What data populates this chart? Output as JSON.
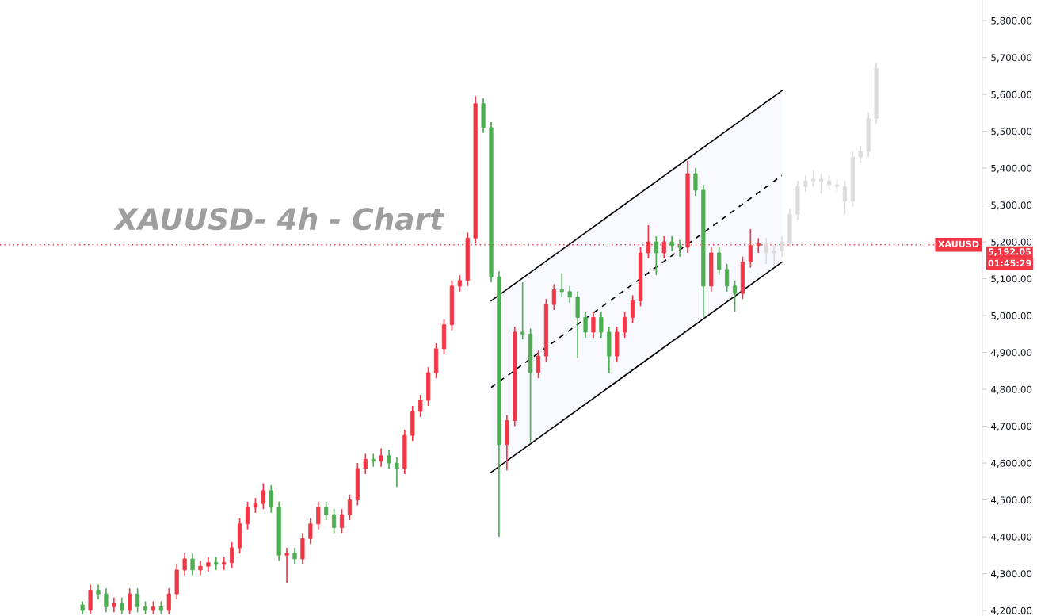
{
  "chart_data": {
    "type": "candlestick",
    "title": "XAUUSD- 4h - Chart",
    "categories": [
      null,
      null,
      null,
      null,
      null,
      null,
      null,
      null,
      null,
      null,
      null,
      null,
      null,
      null,
      null,
      null,
      null,
      null,
      null,
      null,
      null,
      null,
      null,
      null,
      null,
      null,
      null,
      null,
      null,
      null,
      null,
      null,
      null,
      null,
      null,
      null,
      null,
      null,
      null,
      null,
      null,
      null,
      null,
      null,
      null,
      null,
      null,
      null,
      null,
      null,
      null,
      null,
      null,
      null,
      null,
      null,
      null,
      null,
      null,
      null,
      null,
      null,
      null,
      null,
      null,
      null,
      null,
      null,
      null,
      null,
      null,
      null,
      null,
      null,
      null,
      null,
      null,
      null,
      null,
      null,
      null,
      null,
      null,
      null,
      null,
      null,
      null,
      null,
      null,
      null,
      null,
      null,
      null,
      null,
      null,
      null,
      null,
      null,
      null,
      null,
      null,
      null,
      null,
      null,
      null,
      null,
      null,
      null,
      null,
      null,
      null,
      null,
      null,
      null,
      null,
      null,
      null,
      null,
      null,
      null,
      null,
      null,
      null,
      null,
      null
    ],
    "ohlc": [
      null,
      null,
      null,
      null,
      null,
      null,
      null,
      null,
      null,
      null,
      [
        4215,
        4225,
        4190,
        4200
      ],
      [
        4200,
        4270,
        4190,
        4255
      ],
      [
        4255,
        4270,
        4230,
        4245
      ],
      [
        4245,
        4260,
        4195,
        4210
      ],
      [
        4210,
        4235,
        4195,
        4220
      ],
      [
        4220,
        4235,
        4190,
        4200
      ],
      [
        4200,
        4260,
        4190,
        4245
      ],
      [
        4245,
        4260,
        4195,
        4210
      ],
      [
        4210,
        4225,
        4190,
        4200
      ],
      [
        4200,
        4225,
        4190,
        4210
      ],
      [
        4210,
        4225,
        4190,
        4200
      ],
      [
        4200,
        4260,
        4190,
        4245
      ],
      [
        4245,
        4325,
        4230,
        4310
      ],
      [
        4310,
        4355,
        4295,
        4340
      ],
      [
        4340,
        4355,
        4295,
        4310
      ],
      [
        4310,
        4335,
        4295,
        4320
      ],
      [
        4320,
        4345,
        4305,
        4330
      ],
      [
        4330,
        4345,
        4310,
        4325
      ],
      [
        4325,
        4345,
        4310,
        4330
      ],
      [
        4330,
        4385,
        4315,
        4370
      ],
      [
        4370,
        4450,
        4355,
        4435
      ],
      [
        4435,
        4495,
        4420,
        4480
      ],
      [
        4480,
        4505,
        4465,
        4490
      ],
      [
        4490,
        4545,
        4475,
        4525
      ],
      [
        4525,
        4540,
        4465,
        4480
      ],
      [
        4480,
        4495,
        4335,
        4350
      ],
      [
        4350,
        4370,
        4275,
        4355
      ],
      [
        4355,
        4370,
        4325,
        4340
      ],
      [
        4340,
        4410,
        4325,
        4395
      ],
      [
        4395,
        4450,
        4380,
        4435
      ],
      [
        4435,
        4495,
        4420,
        4480
      ],
      [
        4480,
        4495,
        4445,
        4460
      ],
      [
        4460,
        4475,
        4410,
        4425
      ],
      [
        4425,
        4475,
        4410,
        4460
      ],
      [
        4460,
        4515,
        4445,
        4500
      ],
      [
        4500,
        4600,
        4485,
        4585
      ],
      [
        4585,
        4625,
        4570,
        4610
      ],
      [
        4610,
        4625,
        4590,
        4605
      ],
      [
        4605,
        4640,
        4590,
        4620
      ],
      [
        4620,
        4635,
        4585,
        4600
      ],
      [
        4600,
        4615,
        4535,
        4585
      ],
      [
        4585,
        4690,
        4570,
        4675
      ],
      [
        4675,
        4755,
        4660,
        4740
      ],
      [
        4740,
        4785,
        4725,
        4770
      ],
      [
        4770,
        4860,
        4755,
        4845
      ],
      [
        4845,
        4925,
        4830,
        4910
      ],
      [
        4910,
        4990,
        4895,
        4975
      ],
      [
        4975,
        5095,
        4960,
        5080
      ],
      [
        5080,
        5110,
        5065,
        5095
      ],
      [
        5095,
        5225,
        5080,
        5210
      ],
      [
        5210,
        5595,
        5195,
        5575
      ],
      [
        5575,
        5590,
        5495,
        5510
      ],
      [
        5510,
        5525,
        5090,
        5105
      ],
      [
        5105,
        5120,
        4400,
        4650
      ],
      [
        4650,
        4730,
        4580,
        4715
      ],
      [
        4715,
        4970,
        4700,
        4955
      ],
      [
        4955,
        5090,
        4935,
        4950
      ],
      [
        4950,
        4965,
        4655,
        4845
      ],
      [
        4845,
        4905,
        4830,
        4890
      ],
      [
        4890,
        5045,
        4875,
        5030
      ],
      [
        5030,
        5085,
        5015,
        5070
      ],
      [
        5070,
        5115,
        5050,
        5065
      ],
      [
        5065,
        5080,
        5035,
        5050
      ],
      [
        5050,
        5065,
        4885,
        4995
      ],
      [
        4995,
        5010,
        4940,
        4955
      ],
      [
        4955,
        5010,
        4940,
        4995
      ],
      [
        4995,
        5010,
        4940,
        4955
      ],
      [
        4955,
        4970,
        4845,
        4890
      ],
      [
        4890,
        4970,
        4875,
        4955
      ],
      [
        4955,
        5010,
        4940,
        4995
      ],
      [
        4995,
        5055,
        4980,
        5040
      ],
      [
        5040,
        5185,
        5025,
        5170
      ],
      [
        5170,
        5245,
        5155,
        5200
      ],
      [
        5200,
        5215,
        5110,
        5170
      ],
      [
        5170,
        5215,
        5155,
        5200
      ],
      [
        5200,
        5215,
        5175,
        5190
      ],
      [
        5190,
        5205,
        5160,
        5185
      ],
      [
        5185,
        5420,
        5170,
        5385
      ],
      [
        5385,
        5400,
        5325,
        5340
      ],
      [
        5340,
        5355,
        4995,
        5080
      ],
      [
        5080,
        5185,
        5065,
        5170
      ],
      [
        5170,
        5185,
        5110,
        5125
      ],
      [
        5125,
        5140,
        5065,
        5080
      ],
      [
        5080,
        5095,
        5010,
        5060
      ],
      [
        5060,
        5160,
        5045,
        5145
      ],
      [
        5145,
        5235,
        5130,
        5190
      ],
      [
        5190,
        5210,
        5170,
        5195
      ],
      [
        5195,
        5210,
        5140,
        5170
      ],
      [
        5170,
        5190,
        5135,
        5175
      ],
      [
        5175,
        5215,
        5160,
        5200
      ],
      [
        5200,
        5290,
        5185,
        5275
      ],
      [
        5275,
        5365,
        5260,
        5350
      ],
      [
        5350,
        5380,
        5335,
        5365
      ],
      [
        5365,
        5395,
        5350,
        5370
      ],
      [
        5370,
        5385,
        5330,
        5365
      ],
      [
        5365,
        5380,
        5340,
        5355
      ],
      [
        5355,
        5370,
        5335,
        5350
      ],
      [
        5350,
        5365,
        5275,
        5310
      ],
      [
        5310,
        5445,
        5295,
        5430
      ],
      [
        5430,
        5460,
        5415,
        5445
      ],
      [
        5445,
        5550,
        5430,
        5535
      ],
      [
        5535,
        5685,
        5520,
        5670
      ],
      null,
      null,
      null,
      null,
      null,
      null,
      null,
      null,
      null,
      null,
      null,
      null,
      null
    ],
    "colors": [
      null,
      null,
      null,
      null,
      null,
      null,
      null,
      null,
      null,
      null,
      "#4caf50",
      "#f23645",
      "#4caf50",
      "#4caf50",
      "#f23645",
      "#4caf50",
      "#f23645",
      "#4caf50",
      "#4caf50",
      "#f23645",
      "#4caf50",
      "#f23645",
      "#f23645",
      "#f23645",
      "#4caf50",
      "#f23645",
      "#f23645",
      "#4caf50",
      "#f23645",
      "#f23645",
      "#f23645",
      "#f23645",
      "#f23645",
      "#f23645",
      "#4caf50",
      "#4caf50",
      "#f23645",
      "#4caf50",
      "#f23645",
      "#f23645",
      "#f23645",
      "#4caf50",
      "#4caf50",
      "#f23645",
      "#f23645",
      "#f23645",
      "#f23645",
      "#4caf50",
      "#f23645",
      "#4caf50",
      "#4caf50",
      "#f23645",
      "#f23645",
      "#f23645",
      "#f23645",
      "#f23645",
      "#f23645",
      "#f23645",
      "#f23645",
      "#f23645",
      "#f23645",
      "#4caf50",
      "#4caf50",
      "#4caf50",
      "#f23645",
      "#f23645",
      "#4caf50",
      "#4caf50",
      "#f23645",
      "#f23645",
      "#f23645",
      "#4caf50",
      "#4caf50",
      "#4caf50",
      "#4caf50",
      "#f23645",
      "#4caf50",
      "#4caf50",
      "#f23645",
      "#f23645",
      "#f23645",
      "#f23645",
      "#f23645",
      "#4caf50",
      "#f23645",
      "#4caf50",
      "#4caf50",
      "#f23645",
      "#4caf50",
      "#4caf50",
      "#f23645",
      "#4caf50",
      "#4caf50",
      "#4caf50",
      "#f23645",
      "#f23645",
      "#f23645",
      "#dcdcdc",
      "#dcdcdc",
      "#dcdcdc",
      "#dcdcdc",
      "#dcdcdc",
      "#dcdcdc",
      "#dcdcdc",
      "#dcdcdc",
      "#dcdcdc",
      "#dcdcdc",
      "#dcdcdc",
      "#dcdcdc",
      "#dcdcdc",
      "#dcdcdc",
      "#dcdcdc",
      null,
      null,
      null,
      null,
      null,
      null,
      null,
      null,
      null,
      null,
      null,
      null,
      null
    ],
    "series": [
      {
        "type": "line",
        "color": "#000000",
        "line_style": "solid",
        "values": [
          null,
          null,
          null,
          null,
          null,
          null,
          null,
          null,
          null,
          null,
          null,
          null,
          null,
          null,
          null,
          null,
          null,
          null,
          null,
          null,
          null,
          null,
          null,
          null,
          null,
          null,
          null,
          null,
          null,
          null,
          null,
          null,
          null,
          null,
          null,
          null,
          null,
          null,
          null,
          null,
          null,
          null,
          null,
          null,
          null,
          null,
          null,
          null,
          null,
          null,
          null,
          null,
          null,
          null,
          null,
          null,
          null,
          null,
          null,
          null,
          null,
          null,
          5040,
          null,
          null,
          null,
          null,
          null,
          null,
          null,
          null,
          null,
          null,
          null,
          null,
          null,
          null,
          null,
          null,
          null,
          null,
          null,
          null,
          null,
          null,
          null,
          null,
          null,
          null,
          null,
          null,
          null,
          null,
          null,
          null,
          null,
          null,
          null,
          null,
          5610,
          null,
          null,
          null,
          null,
          null,
          null,
          null,
          null,
          null,
          null,
          null,
          null,
          null,
          null,
          null,
          null,
          null,
          null,
          null,
          null,
          null,
          null,
          null,
          null,
          null
        ]
      },
      {
        "type": "line",
        "color": "#000000",
        "line_style": "dashed",
        "values": [
          null,
          null,
          null,
          null,
          null,
          null,
          null,
          null,
          null,
          null,
          null,
          null,
          null,
          null,
          null,
          null,
          null,
          null,
          null,
          null,
          null,
          null,
          null,
          null,
          null,
          null,
          null,
          null,
          null,
          null,
          null,
          null,
          null,
          null,
          null,
          null,
          null,
          null,
          null,
          null,
          null,
          null,
          null,
          null,
          null,
          null,
          null,
          null,
          null,
          null,
          null,
          null,
          null,
          null,
          null,
          null,
          null,
          null,
          null,
          null,
          null,
          null,
          4805,
          null,
          null,
          null,
          null,
          null,
          null,
          null,
          null,
          null,
          null,
          null,
          null,
          null,
          null,
          null,
          null,
          null,
          null,
          null,
          null,
          null,
          null,
          null,
          null,
          null,
          null,
          null,
          null,
          null,
          null,
          null,
          null,
          null,
          null,
          null,
          null,
          5380,
          null,
          null,
          null,
          null,
          null,
          null,
          null,
          null,
          null,
          null,
          null,
          null,
          null,
          null,
          null,
          null,
          null,
          null,
          null,
          null,
          null,
          null,
          null,
          null,
          null
        ],
        "lower": [
          null,
          null,
          null,
          null,
          null,
          null,
          null,
          null,
          null,
          null,
          null,
          null,
          null,
          null,
          null,
          null,
          null,
          null,
          null,
          null,
          null,
          null,
          null,
          null,
          null,
          null,
          null,
          null,
          null,
          null,
          null,
          null,
          null,
          null,
          null,
          null,
          null,
          null,
          null,
          null,
          null,
          null,
          null,
          null,
          null,
          null,
          null,
          null,
          null,
          null,
          null,
          null,
          null,
          null,
          null,
          null,
          null,
          null,
          null,
          null,
          null,
          null,
          4575,
          null,
          null,
          null,
          null,
          null,
          null,
          null,
          null,
          null,
          null,
          null,
          null,
          null,
          null,
          null,
          null,
          null,
          null,
          null,
          null,
          null,
          null,
          null,
          null,
          null,
          null,
          null,
          null,
          null,
          null,
          null,
          null,
          null,
          null,
          null,
          null,
          5145,
          null,
          null,
          null,
          null,
          null,
          null,
          null,
          null,
          null,
          null,
          null,
          null,
          null,
          null,
          null,
          null,
          null,
          null,
          null,
          null,
          null,
          null,
          null,
          null,
          null
        ],
        "upper": [
          null,
          null,
          null,
          null,
          null,
          null,
          null,
          null,
          null,
          null,
          null,
          null,
          null,
          null,
          null,
          null,
          null,
          null,
          null,
          null,
          null,
          null,
          null,
          null,
          null,
          null,
          null,
          null,
          null,
          null,
          null,
          null,
          null,
          null,
          null,
          null,
          null,
          null,
          null,
          null,
          null,
          null,
          null,
          null,
          null,
          null,
          null,
          null,
          null,
          null,
          null,
          null,
          null,
          null,
          null,
          null,
          null,
          null,
          null,
          null,
          null,
          null,
          5040,
          null,
          null,
          null,
          null,
          null,
          null,
          null,
          null,
          null,
          null,
          null,
          null,
          null,
          null,
          null,
          null,
          null,
          null,
          null,
          null,
          null,
          null,
          null,
          null,
          null,
          null,
          null,
          null,
          null,
          null,
          null,
          null,
          null,
          null,
          null,
          null,
          5610,
          null,
          null,
          null,
          null,
          null,
          null,
          null,
          null,
          null,
          null,
          null,
          null,
          null,
          null,
          null,
          null,
          null,
          null,
          null,
          null,
          null,
          null,
          null,
          null,
          null
        ]
      },
      {
        "type": "line",
        "color": "#000000",
        "line_style": "solid",
        "values": [
          null,
          null,
          null,
          null,
          null,
          null,
          null,
          null,
          null,
          null,
          null,
          null,
          null,
          null,
          null,
          null,
          null,
          null,
          null,
          null,
          null,
          null,
          null,
          null,
          null,
          null,
          null,
          null,
          null,
          null,
          null,
          null,
          null,
          null,
          null,
          null,
          null,
          null,
          null,
          null,
          null,
          null,
          null,
          null,
          null,
          null,
          null,
          null,
          null,
          null,
          null,
          null,
          null,
          null,
          null,
          null,
          null,
          null,
          null,
          null,
          null,
          null,
          4575,
          null,
          null,
          null,
          null,
          null,
          null,
          null,
          null,
          null,
          null,
          null,
          null,
          null,
          null,
          null,
          null,
          null,
          null,
          null,
          null,
          null,
          null,
          null,
          null,
          null,
          null,
          null,
          null,
          null,
          null,
          null,
          null,
          null,
          null,
          null,
          null,
          5145,
          null,
          null,
          null,
          null,
          null,
          null,
          null,
          null,
          null,
          null,
          null,
          null,
          null,
          null,
          null,
          null,
          null,
          null,
          null,
          null,
          null,
          null,
          null,
          null,
          null
        ]
      }
    ],
    "ylim": [
      4185,
      5856
    ],
    "yticks": [
      {
        "value": 4200,
        "label": "4,200.00"
      },
      {
        "value": 4300,
        "label": "4,300.00"
      },
      {
        "value": 4400,
        "label": "4,400.00"
      },
      {
        "value": 4500,
        "label": "4,500.00"
      },
      {
        "value": 4600,
        "label": "4,600.00"
      },
      {
        "value": 4700,
        "label": "4,700.00"
      },
      {
        "value": 4800,
        "label": "4,800.00"
      },
      {
        "value": 4900,
        "label": "4,900.00"
      },
      {
        "value": 5000,
        "label": "5,000.00"
      },
      {
        "value": 5100,
        "label": "5,100.00"
      },
      {
        "value": 5200,
        "label": "5,200.00"
      },
      {
        "value": 5300,
        "label": "5,300.00"
      },
      {
        "value": 5400,
        "label": "5,400.00"
      },
      {
        "value": 5500,
        "label": "5,500.00"
      },
      {
        "value": 5600,
        "label": "5,600.00"
      },
      {
        "value": 5700,
        "label": "5,700.00"
      },
      {
        "value": 5800,
        "label": "5,800.00"
      }
    ],
    "ref_lines": [
      {
        "axis": "y",
        "value": 5192.05,
        "label": "XAUUSD",
        "color": "#f23645",
        "line_style": "dotted"
      }
    ],
    "annotations": [
      "5,192.05",
      "01:45:29"
    ],
    "tick_labels": "y",
    "grid": false,
    "legend": false
  }
}
